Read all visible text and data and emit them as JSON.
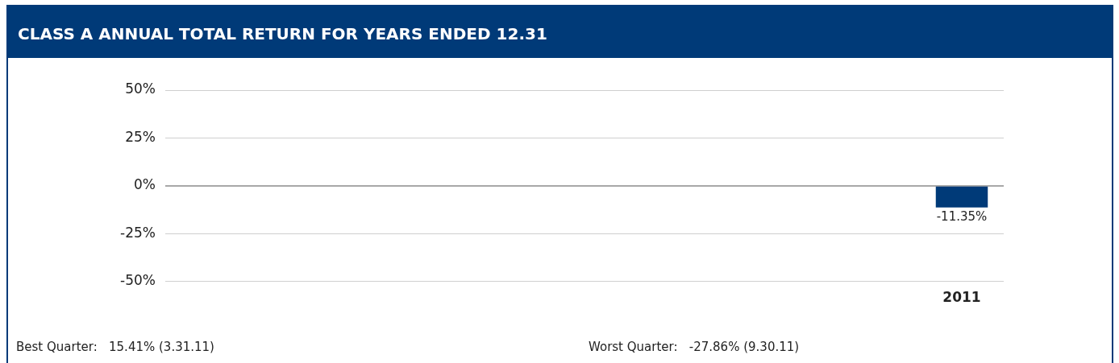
{
  "chart_data": {
    "type": "bar",
    "title": "CLASS A ANNUAL TOTAL RETURN FOR YEARS ENDED 12.31",
    "categories": [
      null,
      null,
      null,
      null,
      null,
      null,
      null,
      null,
      null,
      "2011"
    ],
    "values": [
      null,
      null,
      null,
      null,
      null,
      null,
      null,
      null,
      null,
      -11.35
    ],
    "value_labels": [
      null,
      null,
      null,
      null,
      null,
      null,
      null,
      null,
      null,
      "-11.35%"
    ],
    "color": "#003a78",
    "ylim": [
      -50,
      50
    ],
    "yticks": [
      {
        "value": -50,
        "label": "-50%"
      },
      {
        "value": -25,
        "label": "-25%"
      },
      {
        "value": 0,
        "label": "0%"
      },
      {
        "value": 25,
        "label": "25%"
      },
      {
        "value": 50,
        "label": "50%"
      }
    ],
    "grid": "y",
    "annotations": [
      "Best Quarter:   15.41% (3.31.11)",
      "Worst Quarter:   -27.86% (9.30.11)"
    ]
  }
}
